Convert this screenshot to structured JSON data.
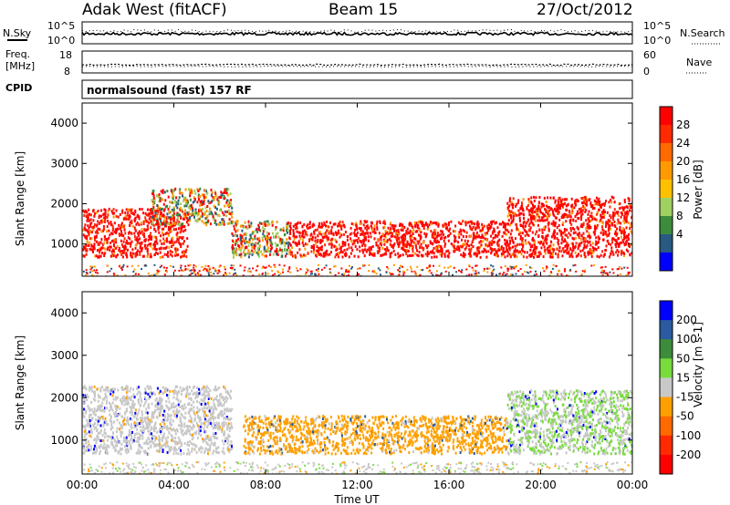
{
  "header": {
    "station": "Adak West (fitACF)",
    "beam": "Beam 15",
    "date": "27/Oct/2012"
  },
  "strip_nsky": {
    "left_label": "N.Sky",
    "left_ticks": [
      "10^5",
      "10^0"
    ],
    "right_label": "N.Search",
    "right_ticks": [
      "10^5",
      "10^0"
    ]
  },
  "strip_freq": {
    "left_label_line1": "Freq.",
    "left_label_line2": "[MHz]",
    "left_ticks": [
      "18",
      "8"
    ],
    "right_label": "Nave",
    "right_ticks": [
      "60",
      "0"
    ]
  },
  "strip_cpid": {
    "label": "CPID",
    "value": "normalsound (fast) 157 RF"
  },
  "colors": {
    "background": "#ffffff",
    "scatter_gray": "#c8c8c8",
    "line_black": "#000000"
  },
  "chart_data": [
    {
      "type": "heatmap",
      "title": "",
      "xlabel": "",
      "ylabel": "Slant Range [km]",
      "xlim": [
        0,
        24
      ],
      "ylim": [
        200,
        4500
      ],
      "xticks": [
        "00:00",
        "04:00",
        "08:00",
        "12:00",
        "16:00",
        "20:00",
        "00:00"
      ],
      "yticks": [
        "1000",
        "2000",
        "3000",
        "4000"
      ],
      "colorbar": {
        "label": "Power [dB]",
        "ticks": [
          "28",
          "24",
          "20",
          "16",
          "12",
          "8",
          "4"
        ],
        "colors": [
          "#ff0000",
          "#ff2a00",
          "#ff6a00",
          "#ff9a00",
          "#ffc000",
          "#a0d060",
          "#3c8c3c",
          "#285a82",
          "#0000ff"
        ]
      },
      "regions": [
        {
          "x": [
            0.0,
            4.6
          ],
          "y": [
            700,
            1900
          ],
          "level": "high"
        },
        {
          "x": [
            3.0,
            6.5
          ],
          "y": [
            1500,
            2400
          ],
          "level": "mixed"
        },
        {
          "x": [
            6.5,
            9.0
          ],
          "y": [
            700,
            1600
          ],
          "level": "mixed"
        },
        {
          "x": [
            9.0,
            18.5
          ],
          "y": [
            700,
            1600
          ],
          "level": "high"
        },
        {
          "x": [
            18.5,
            24.0
          ],
          "y": [
            700,
            2200
          ],
          "level": "high"
        }
      ]
    },
    {
      "type": "heatmap",
      "title": "",
      "xlabel": "Time UT",
      "ylabel": "Slant Range [km]",
      "xlim": [
        0,
        24
      ],
      "ylim": [
        200,
        4500
      ],
      "xticks": [
        "00:00",
        "04:00",
        "08:00",
        "12:00",
        "16:00",
        "20:00",
        "00:00"
      ],
      "yticks": [
        "1000",
        "2000",
        "3000",
        "4000"
      ],
      "colorbar": {
        "label": "Velocity [m s-1]",
        "ticks": [
          "200",
          "100",
          "50",
          "15",
          "-15",
          "-50",
          "-100",
          "-200"
        ],
        "colors": [
          "#0000ff",
          "#2a5aa0",
          "#3c8c3c",
          "#78dc3c",
          "#c8c8c8",
          "#ffa000",
          "#ff6a00",
          "#ff2a00",
          "#ff0000"
        ]
      },
      "regions": [
        {
          "x": [
            0.0,
            6.5
          ],
          "y": [
            700,
            2300
          ],
          "velocity_class": "ground scatter (gray)"
        },
        {
          "x": [
            7.0,
            18.5
          ],
          "y": [
            700,
            1600
          ],
          "velocity_class": "-15 to -50 (orange)"
        },
        {
          "x": [
            18.5,
            24.0
          ],
          "y": [
            700,
            2200
          ],
          "velocity_class": "15 to 50 (green) / gray"
        }
      ]
    }
  ]
}
